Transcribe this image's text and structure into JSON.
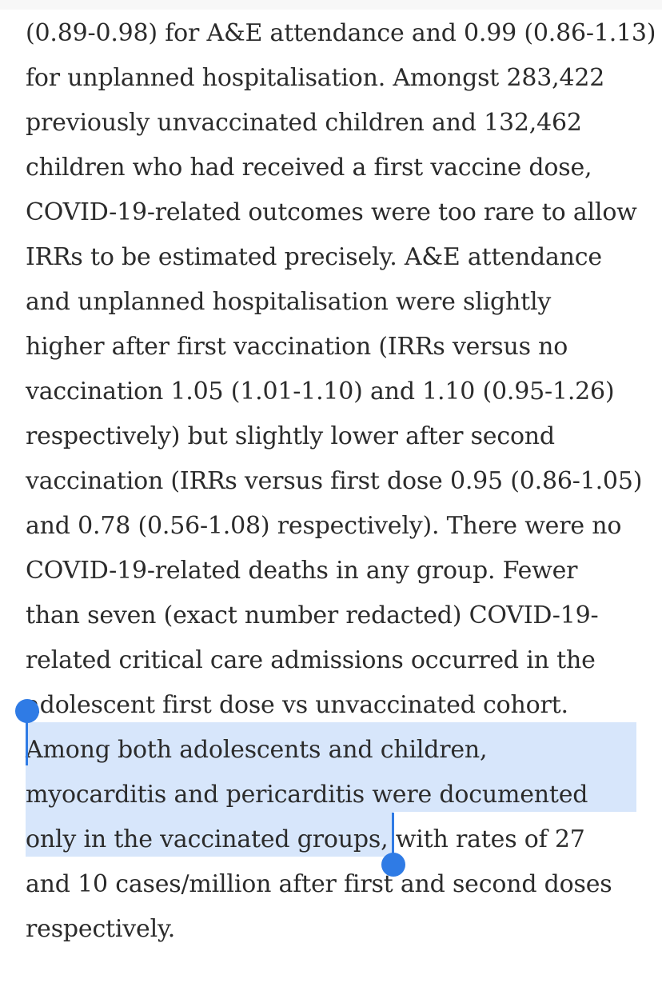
{
  "article": {
    "lines": [
      "(0.89-0.98) for A&E attendance and 0.99 (0.86-1.13)",
      "for unplanned hospitalisation. Amongst 283,422",
      "previously unvaccinated children and 132,462",
      "children who had received a first vaccine dose,",
      "COVID-19-related outcomes were too rare to allow",
      "IRRs to be estimated precisely. A&E attendance",
      "and unplanned hospitalisation were slightly",
      "higher after first vaccination (IRRs versus no",
      "vaccination 1.05 (1.01-1.10) and 1.10 (0.95-1.26)",
      "respectively) but slightly lower after second",
      "vaccination (IRRs versus first dose 0.95 (0.86-1.05)",
      "and 0.78 (0.56-1.08) respectively). There were no",
      "COVID-19-related deaths in any group. Fewer",
      "than seven (exact number redacted) COVID-19-",
      "related critical care admissions occurred in the",
      "adolescent first dose vs unvaccinated cohort.",
      "Among both adolescents and children,",
      "myocarditis and pericarditis were documented",
      "only in the vaccinated groups, with rates of 27",
      "and 10 cases/million after first and second doses",
      "respectively."
    ]
  },
  "selection": {
    "selected_text": "Among both adolescents and children, myocarditis and pericarditis were documented only in the vaccinated groups,",
    "highlight_color": "#d7e6fb",
    "handle_color": "#2f7be5"
  }
}
